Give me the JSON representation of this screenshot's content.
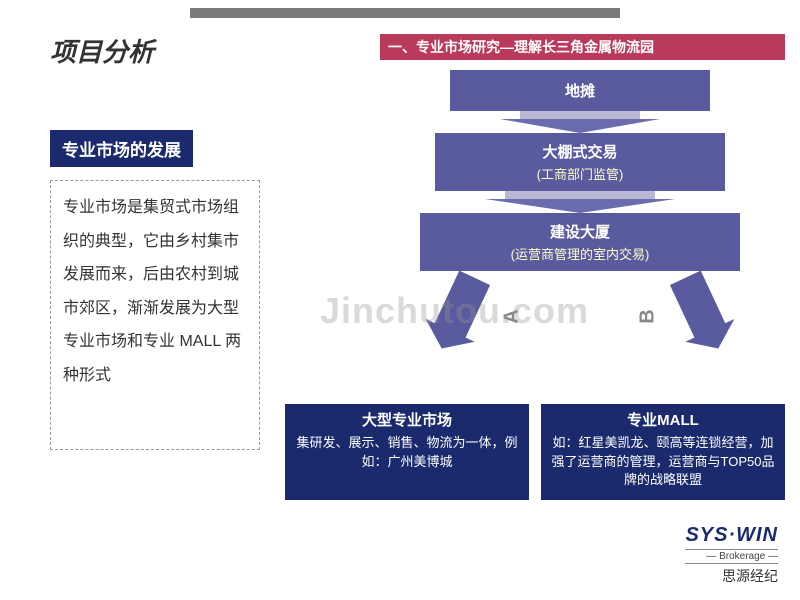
{
  "colors": {
    "accent_purple": "#5a5a9e",
    "accent_purple_light": "#b9b9d6",
    "arrow_head": "#6b6bb0",
    "dark_navy": "#1a2a6c",
    "red_band": "#b93a5a",
    "gray_bar": "#7a7a7a",
    "text": "#333",
    "sub_text": "#ffffcc",
    "watermark": "rgba(150,150,150,.35)"
  },
  "page": {
    "title": "项目分析",
    "subtitle": "一、专业市场研究—理解长三角金属物流园"
  },
  "left": {
    "badge": "专业市场的发展",
    "paragraph": "专业市场是集贸式市场组织的典型，它由乡村集市发展而来，后由农村到城市郊区，渐渐发展为大型专业市场和专业 MALL 两种形式"
  },
  "flow": {
    "type": "flowchart",
    "stages": [
      {
        "title": "地摊",
        "sub": ""
      },
      {
        "title": "大棚式交易",
        "sub": "(工商部门监管)"
      },
      {
        "title": "建设大厦",
        "sub": "(运营商管理的室内交易)"
      }
    ],
    "branch_labels": {
      "left": "A",
      "right": "B"
    },
    "branches": [
      {
        "title": "大型专业市场",
        "body": "集研发、展示、销售、物流为一体，例如：广州美博城"
      },
      {
        "title": "专业MALL",
        "body": "如：红星美凯龙、颐高等连锁经营，加强了运营商的管理，运营商与TOP50品牌的战略联盟"
      }
    ]
  },
  "watermark": "Jinchutou.com",
  "logo": {
    "line1": "SYS·WIN",
    "line2": "— Brokerage —",
    "line3": "思源经纪"
  }
}
